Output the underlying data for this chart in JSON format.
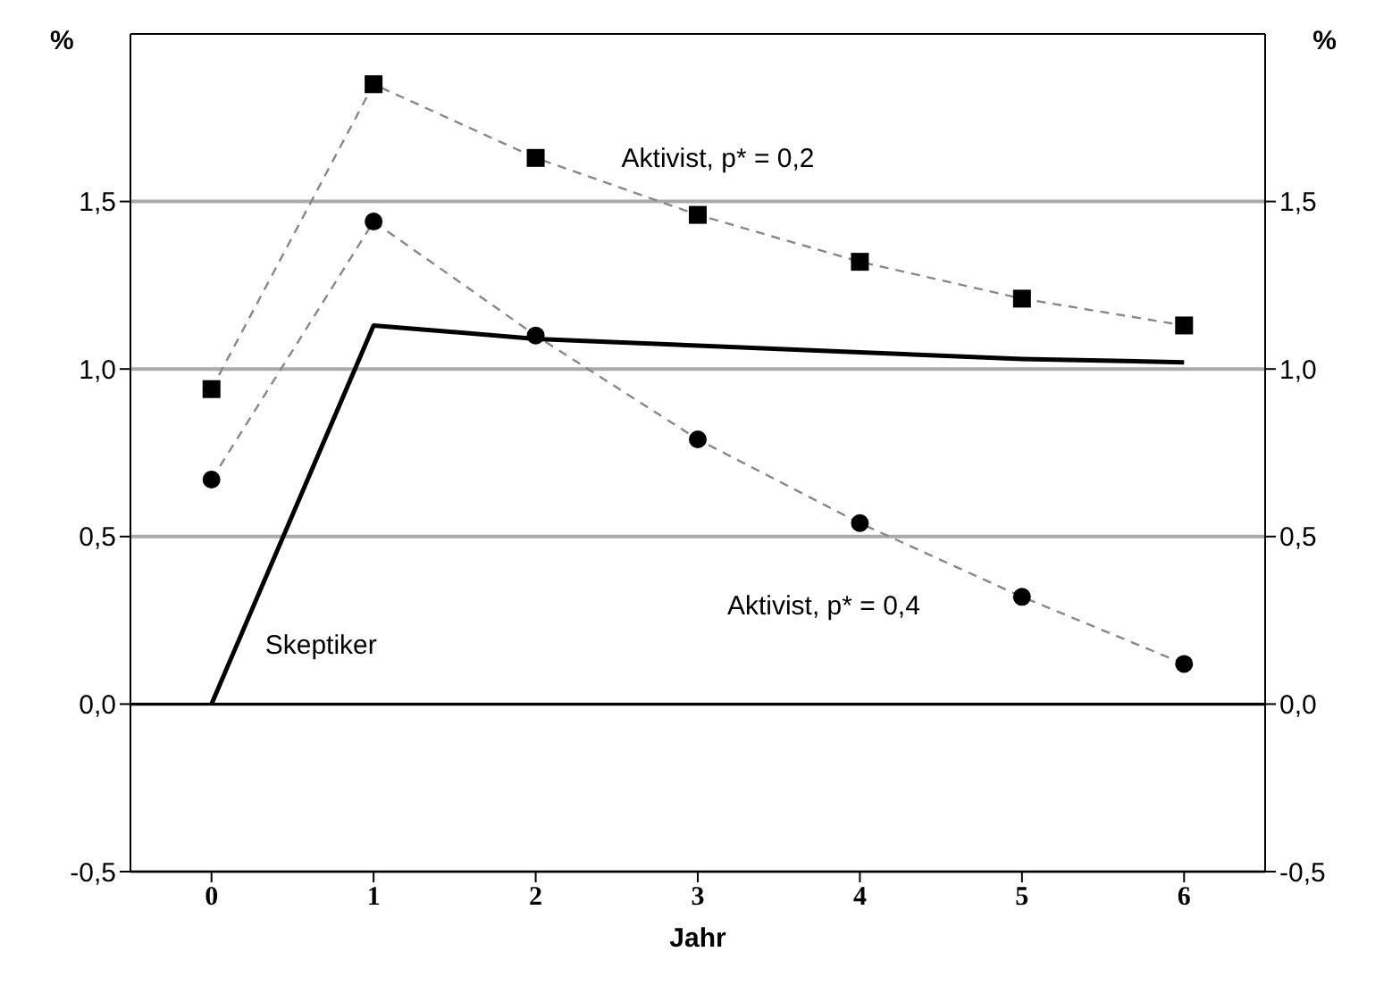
{
  "chart_data": {
    "type": "line",
    "xlabel": "Jahr",
    "ylabel": "%",
    "y2label": "%",
    "x": [
      0,
      1,
      2,
      3,
      4,
      5,
      6
    ],
    "xlim": [
      -0.5,
      6.5
    ],
    "xticks": [
      0,
      1,
      2,
      3,
      4,
      5,
      6
    ],
    "ylim": [
      -0.5,
      2.0
    ],
    "yticks": [
      {
        "value": -0.5,
        "label": "-0,5"
      },
      {
        "value": 0,
        "label": "0,0"
      },
      {
        "value": 0.5,
        "label": "0,5"
      },
      {
        "value": 1.0,
        "label": "1,0"
      },
      {
        "value": 1.5,
        "label": "1,5"
      }
    ],
    "y2lim": [
      -0.5,
      2.0
    ],
    "y2ticks": [
      {
        "value": -0.5,
        "label": "-0,5"
      },
      {
        "value": 0,
        "label": "0,0"
      },
      {
        "value": 0.5,
        "label": "0,5"
      },
      {
        "value": 1.0,
        "label": "1,0"
      },
      {
        "value": 1.5,
        "label": "1,5"
      }
    ],
    "grid": "y",
    "legend": false,
    "ref_lines": [
      {
        "axis": "y",
        "value": 0,
        "color": "#000000"
      }
    ],
    "series": [
      {
        "name": "Aktivist, p* = 0,2",
        "color": "#000000",
        "marker": "square",
        "line_style": "dashed",
        "values": [
          0.94,
          1.85,
          1.63,
          1.46,
          1.32,
          1.21,
          1.13
        ]
      },
      {
        "name": "Aktivist, p* = 0,4",
        "color": "#000000",
        "marker": "circle",
        "line_style": "dashed",
        "values": [
          0.67,
          1.44,
          1.1,
          0.79,
          0.54,
          0.32,
          0.12
        ]
      },
      {
        "name": "Skeptiker",
        "color": "#000000",
        "marker": "none",
        "line_style": "solid",
        "values": [
          0,
          1.13,
          1.09,
          1.07,
          1.05,
          1.03,
          1.02
        ]
      }
    ]
  }
}
